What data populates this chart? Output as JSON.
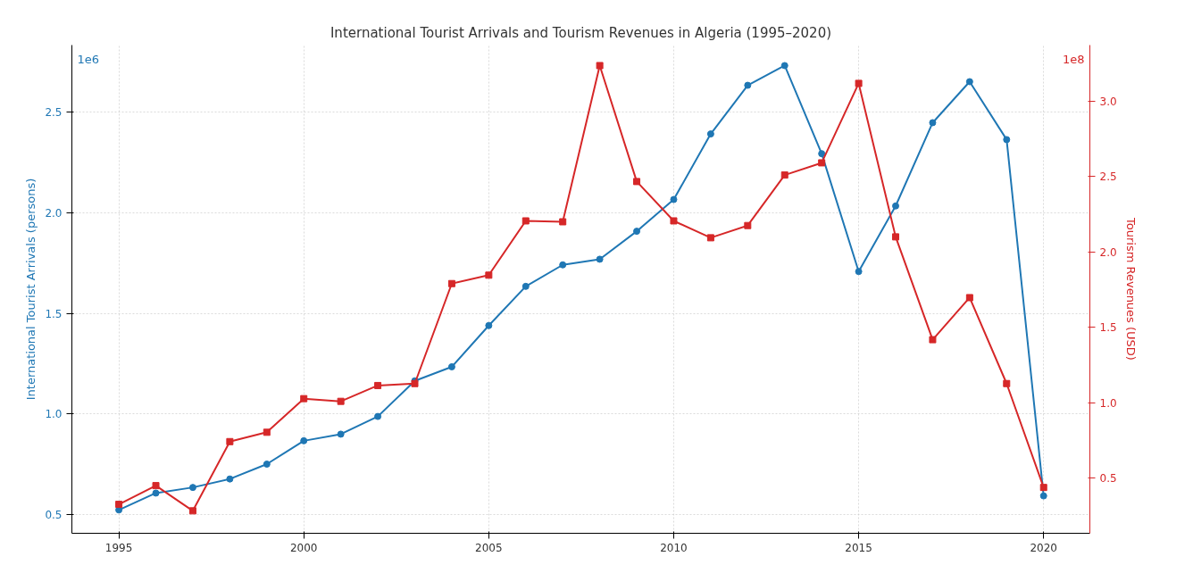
{
  "chart_data": {
    "type": "line",
    "title": "International Tourist Arrivals and Tourism Revenues in Algeria (1995–2020)",
    "ylabel": "International Tourist Arrivals (persons)",
    "y2label": "Tourism Revenues (USD)",
    "annotations": [
      "1e6",
      "1e8"
    ],
    "x": [
      1995,
      1996,
      1997,
      1998,
      1999,
      2000,
      2001,
      2002,
      2003,
      2004,
      2005,
      2006,
      2007,
      2008,
      2009,
      2010,
      2011,
      2012,
      2013,
      2014,
      2015,
      2016,
      2017,
      2018,
      2019,
      2020
    ],
    "series": [
      {
        "color": "#1f77b4",
        "marker": "circle",
        "values": [
          0.523,
          0.607,
          0.635,
          0.677,
          0.751,
          0.867,
          0.9,
          0.988,
          1.165,
          1.235,
          1.44,
          1.635,
          1.742,
          1.77,
          1.909,
          2.067,
          2.393,
          2.635,
          2.733,
          2.295,
          1.709,
          2.035,
          2.449,
          2.653,
          2.365,
          0.593
        ]
      },
      {
        "color": "#d62728",
        "marker": "square",
        "axis": "y2",
        "values": [
          0.326,
          0.45,
          0.283,
          0.742,
          0.804,
          1.027,
          1.009,
          1.114,
          1.127,
          1.79,
          1.846,
          2.206,
          2.2,
          3.236,
          2.467,
          2.206,
          2.094,
          2.175,
          2.51,
          2.591,
          3.118,
          2.1,
          1.418,
          1.697,
          1.127,
          0.438
        ]
      }
    ],
    "xlim": [
      1993.73,
      2021.25
    ],
    "xticks": [
      1995,
      2000,
      2005,
      2010,
      2015,
      2020
    ],
    "ylim": [
      0.407,
      2.835
    ],
    "yticks": [
      0.5,
      {
        "value": 1,
        "label": "1.0"
      },
      1.5,
      {
        "value": 2,
        "label": "2.0"
      },
      2.5
    ],
    "y2lim": [
      0.134,
      3.372
    ],
    "y2ticks": [
      0.5,
      {
        "value": 1,
        "label": "1.0"
      },
      1.5,
      {
        "value": 2,
        "label": "2.0"
      },
      2.5,
      {
        "value": 3,
        "label": "3.0"
      }
    ],
    "grid": true,
    "line_style": "solid"
  }
}
